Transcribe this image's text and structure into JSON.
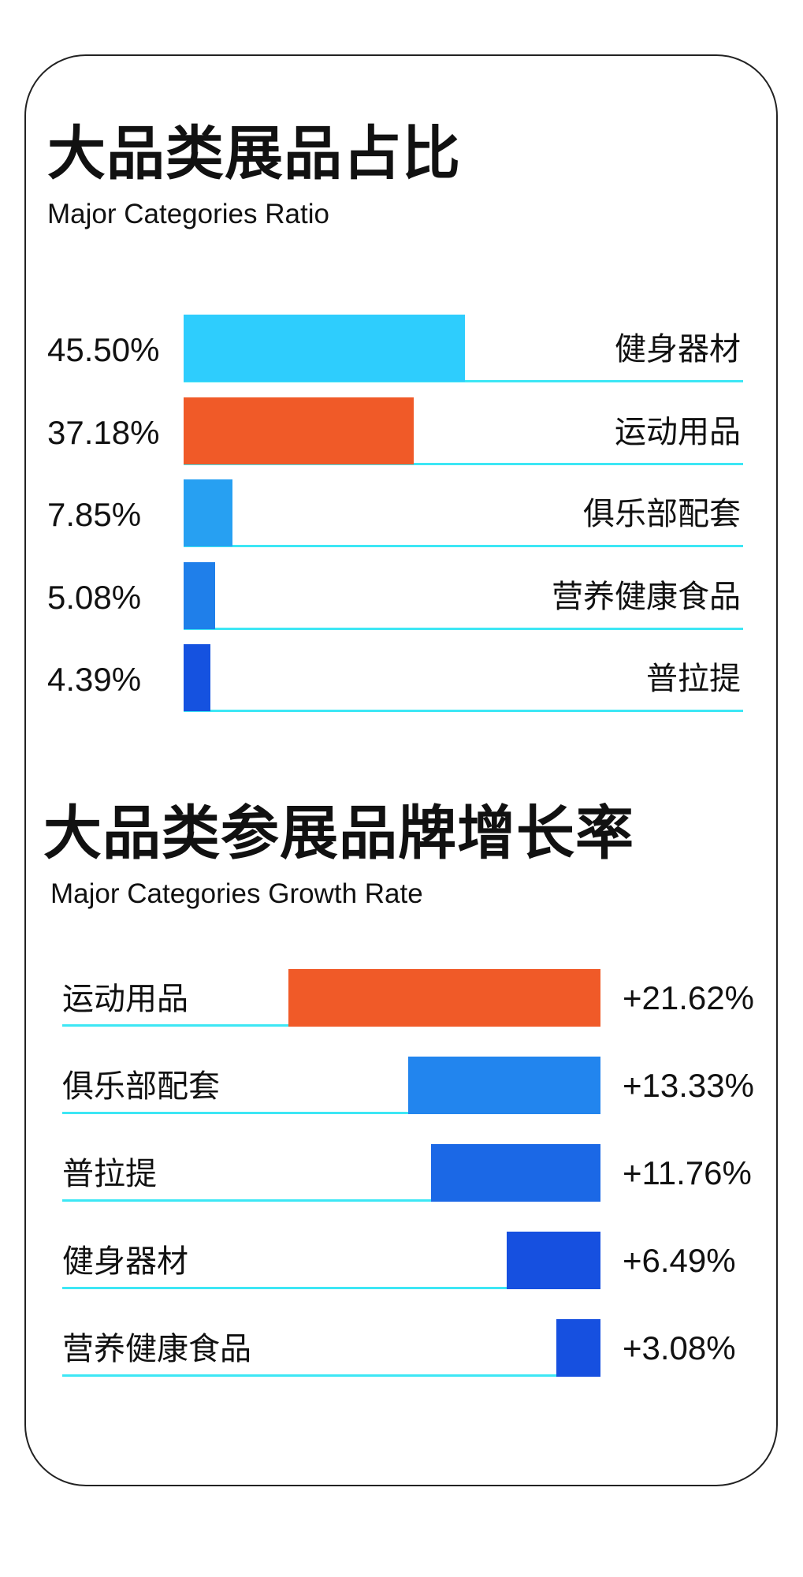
{
  "chart_data": [
    {
      "type": "bar",
      "orientation": "horizontal",
      "title": "大品类展品占比",
      "subtitle": "Major Categories Ratio",
      "categories": [
        "健身器材",
        "运动用品",
        "俱乐部配套",
        "营养健康食品",
        "普拉提"
      ],
      "values": [
        45.5,
        37.18,
        7.85,
        5.08,
        4.39
      ],
      "value_labels": [
        "45.50%",
        "37.18%",
        "7.85%",
        "5.08%",
        "4.39%"
      ],
      "colors": [
        "#2ecdfd",
        "#f05a28",
        "#27a0f2",
        "#1f7fea",
        "#1552e0"
      ],
      "unit": "%",
      "grid": false
    },
    {
      "type": "bar",
      "orientation": "horizontal",
      "title": "大品类参展品牌增长率",
      "subtitle": "Major Categories Growth Rate",
      "categories": [
        "运动用品",
        "俱乐部配套",
        "普拉提",
        "健身器材",
        "营养健康食品"
      ],
      "values": [
        21.62,
        13.33,
        11.76,
        6.49,
        3.08
      ],
      "value_labels": [
        "+21.62%",
        "+13.33%",
        "+11.76%",
        "+6.49%",
        "+3.08%"
      ],
      "colors": [
        "#f05a28",
        "#2285ee",
        "#1b68e6",
        "#1650e0",
        "#1650e0"
      ],
      "unit": "%",
      "grid": false
    }
  ],
  "accent_line_color": "#3de7f5"
}
